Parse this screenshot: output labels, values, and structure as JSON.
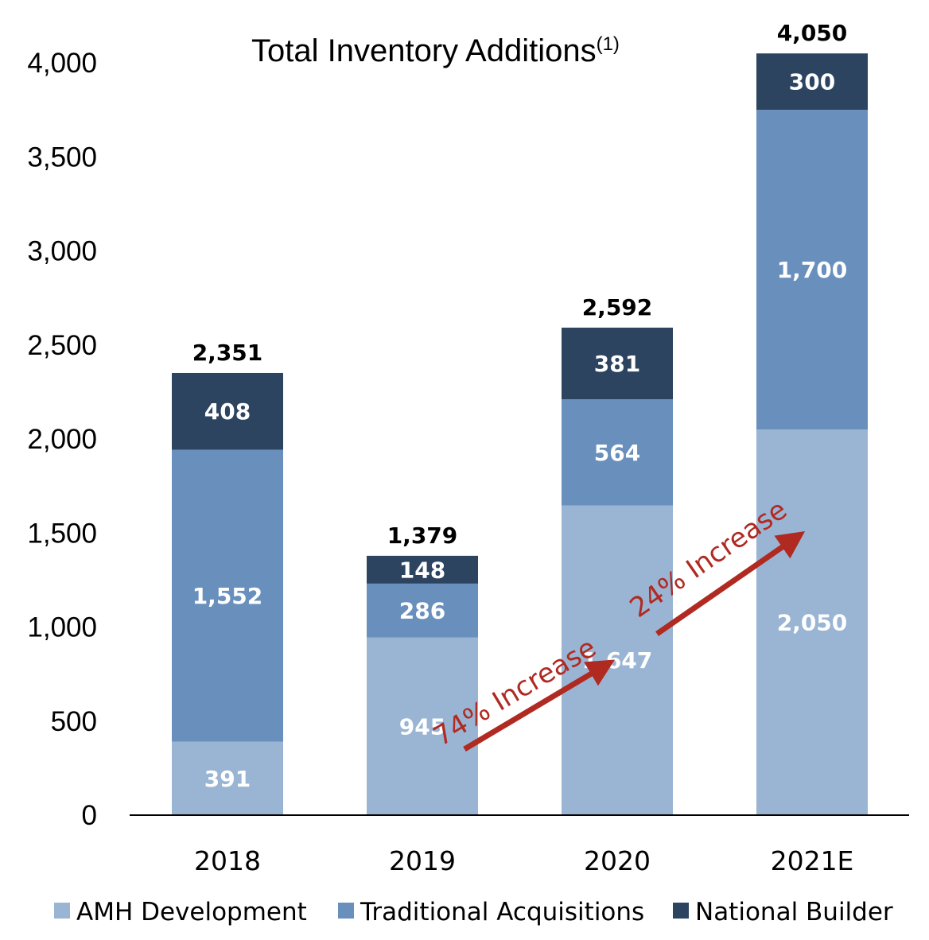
{
  "chart_data": {
    "type": "bar",
    "stacked": true,
    "title": "Total Inventory Additions",
    "title_superscript": "(1)",
    "categories": [
      "2018",
      "2019",
      "2020",
      "2021E"
    ],
    "series": [
      {
        "name": "AMH Development",
        "values": [
          391,
          945,
          1647,
          2050
        ],
        "labels": [
          "391",
          "945",
          "1,647",
          "2,050"
        ],
        "color": "#9ab5d3"
      },
      {
        "name": "Traditional Acquisitions",
        "values": [
          1552,
          286,
          564,
          1700
        ],
        "labels": [
          "1,552",
          "286",
          "564",
          "1,700"
        ],
        "color": "#6990bd"
      },
      {
        "name": "National Builder",
        "values": [
          408,
          148,
          381,
          300
        ],
        "labels": [
          "408",
          "148",
          "381",
          "300"
        ],
        "color": "#2d4460"
      }
    ],
    "totals": [
      2351,
      1379,
      2592,
      4050
    ],
    "total_labels": [
      "2,351",
      "1,379",
      "2,592",
      "4,050"
    ],
    "ylim": [
      0,
      4000
    ],
    "yticks": [
      0,
      500,
      1000,
      1500,
      2000,
      2500,
      3000,
      3500,
      4000
    ],
    "ytick_labels": [
      "0",
      "500",
      "1,000",
      "1,500",
      "2,000",
      "2,500",
      "3,000",
      "3,500",
      "4,000"
    ],
    "grid": false,
    "legend_position": "bottom",
    "annotations": [
      {
        "text": "74% Increase",
        "from_category": "2019",
        "to_category": "2020",
        "color": "#b02a22"
      },
      {
        "text": "24% Increase",
        "from_category": "2020",
        "to_category": "2021E",
        "color": "#b02a22"
      }
    ]
  }
}
